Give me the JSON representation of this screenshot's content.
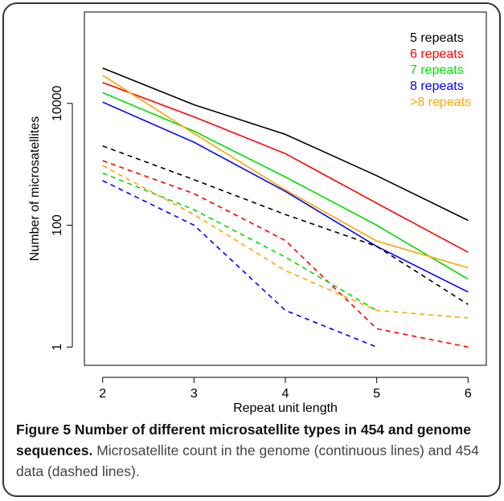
{
  "chart_data": {
    "type": "line",
    "x": [
      2,
      3,
      4,
      5,
      6
    ],
    "x_ticks": [
      "2",
      "3",
      "4",
      "5",
      "6"
    ],
    "y_scale": "log",
    "y_ticks": [
      "1",
      "100",
      "10000"
    ],
    "y_tick_values": [
      1,
      100,
      10000
    ],
    "xlabel": "Repeat unit length",
    "ylabel": "Number of microsatellites",
    "xlim": [
      1.8,
      6.2
    ],
    "ylim_log10": [
      -0.3,
      5.5
    ],
    "legend_position": "top-right",
    "legend": [
      "5 repeats",
      "6 repeats",
      "7 repeats",
      "8 repeats",
      ">8 repeats"
    ],
    "series": [
      {
        "name": "5 repeats",
        "color": "#000000",
        "style": "solid",
        "values": [
          38000,
          9500,
          3100,
          650,
          120
        ]
      },
      {
        "name": "6 repeats",
        "color": "#ff0000",
        "style": "solid",
        "values": [
          22000,
          6000,
          1500,
          230,
          36
        ]
      },
      {
        "name": "7 repeats",
        "color": "#00dd00",
        "style": "solid",
        "values": [
          15000,
          3500,
          620,
          100,
          13
        ]
      },
      {
        "name": "8 repeats",
        "color": "#0000ff",
        "style": "solid",
        "values": [
          10500,
          2300,
          360,
          45,
          8
        ]
      },
      {
        "name": ">8 repeats",
        "color": "#ffa500",
        "style": "solid",
        "values": [
          29000,
          3200,
          380,
          55,
          20
        ]
      },
      {
        "name": "5 repeats",
        "color": "#000000",
        "style": "dashed",
        "values": [
          2000,
          560,
          150,
          45,
          5
        ]
      },
      {
        "name": "6 repeats",
        "color": "#ff0000",
        "style": "dashed",
        "values": [
          1150,
          330,
          56,
          2,
          1
        ]
      },
      {
        "name": "7 repeats",
        "color": "#00dd00",
        "style": "dashed",
        "values": [
          720,
          180,
          30,
          4,
          null
        ]
      },
      {
        "name": "8 repeats",
        "color": "#0000ff",
        "style": "dashed",
        "values": [
          540,
          100,
          4,
          1,
          null
        ]
      },
      {
        "name": ">8 repeats",
        "color": "#ffa500",
        "style": "dashed",
        "values": [
          950,
          150,
          18,
          4,
          3
        ]
      }
    ]
  },
  "caption": {
    "bold": "Figure 5 Number of different microsatellite types in 454 and genome sequences.",
    "text": " Microsatellite count in the genome (continuous lines) and 454 data (dashed lines)."
  }
}
